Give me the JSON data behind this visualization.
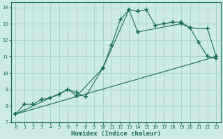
{
  "xlabel": "Humidex (Indice chaleur)",
  "bg_color": "#ceeae4",
  "grid_color": "#aad4cc",
  "line_color": "#1a6b5a",
  "xlim": [
    -0.5,
    23.5
  ],
  "ylim": [
    7,
    14.3
  ],
  "xticks": [
    0,
    1,
    2,
    3,
    4,
    5,
    6,
    7,
    8,
    9,
    10,
    11,
    12,
    13,
    14,
    15,
    16,
    17,
    18,
    19,
    20,
    21,
    22,
    23
  ],
  "yticks": [
    7,
    8,
    9,
    10,
    11,
    12,
    13,
    14
  ],
  "line1_x": [
    0,
    1,
    2,
    3,
    4,
    5,
    6,
    7,
    8,
    10,
    11,
    12,
    13,
    14,
    15,
    16,
    17,
    18,
    19,
    20,
    21,
    22,
    23
  ],
  "line1_y": [
    7.5,
    8.1,
    8.1,
    8.4,
    8.5,
    8.7,
    9.0,
    8.8,
    8.55,
    10.3,
    11.7,
    13.25,
    13.85,
    13.75,
    13.85,
    12.9,
    13.0,
    13.1,
    13.1,
    12.75,
    11.85,
    11.0,
    10.9
  ],
  "line2_x": [
    0,
    6,
    7,
    10,
    13,
    14,
    19,
    20,
    22,
    23
  ],
  "line2_y": [
    7.5,
    9.0,
    8.6,
    10.3,
    13.85,
    12.5,
    13.0,
    12.75,
    12.7,
    11.0
  ],
  "line3_x": [
    0,
    23
  ],
  "line3_y": [
    7.5,
    11.0
  ]
}
